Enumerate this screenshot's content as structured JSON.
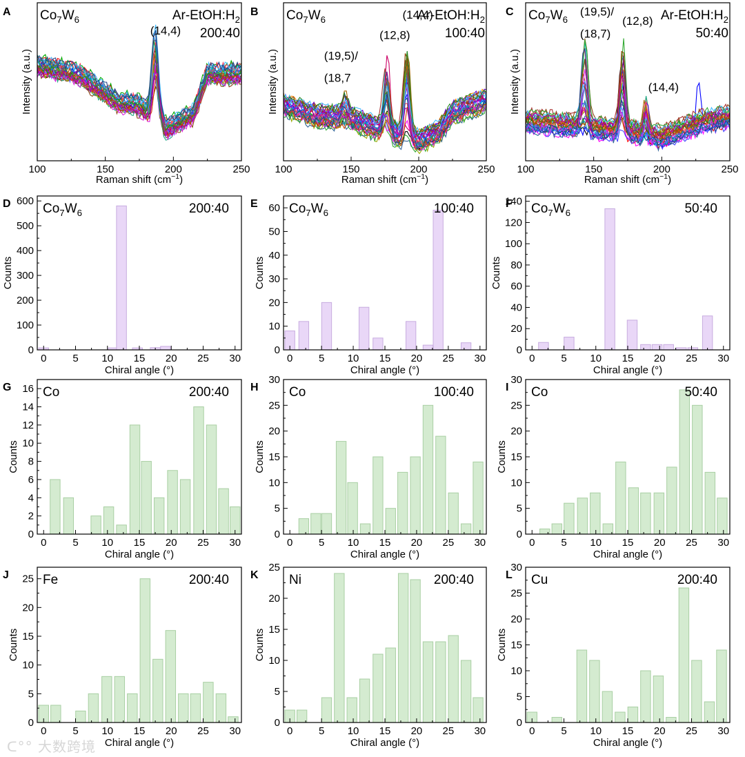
{
  "chart_data": [
    {
      "panel": "A",
      "type": "line",
      "catalyst": "Co7W6",
      "ratio_label": "Ar-EtOH:H2",
      "ratio_value": "200:40",
      "xlabel": "Raman shift (cm",
      "xlabel_sup": "−1",
      "ylabel": "Intensity (a.u.)",
      "xlim": [
        100,
        250
      ],
      "xticks": [
        100,
        150,
        200,
        250
      ],
      "peaks": [
        {
          "label": "(14,4)",
          "x": 187
        }
      ],
      "annotations": [
        {
          "text": "(14,4)",
          "x": 183,
          "y": 0.8
        }
      ]
    },
    {
      "panel": "B",
      "type": "line",
      "catalyst": "Co7W6",
      "ratio_label": "Ar-EtOH:H2",
      "ratio_value": "100:40",
      "xlabel": "Raman shift (cm",
      "xlabel_sup": "−1",
      "ylabel": "Intensity (a.u.)",
      "xlim": [
        100,
        250
      ],
      "xticks": [
        100,
        150,
        200,
        250
      ],
      "peaks": [
        {
          "label": "(19,5)/(18,7",
          "x": 145
        },
        {
          "label": "(12,8)",
          "x": 176
        },
        {
          "label": "(14,4)",
          "x": 191
        }
      ],
      "annotations": [
        {
          "text": "(19,5)/",
          "x": 130,
          "y": 0.64
        },
        {
          "text": "(18,7",
          "x": 130,
          "y": 0.5
        },
        {
          "text": "(12,8)",
          "x": 171,
          "y": 0.77
        },
        {
          "text": "(14,4)",
          "x": 188,
          "y": 0.9
        }
      ]
    },
    {
      "panel": "C",
      "type": "line",
      "catalyst": "Co7W6",
      "ratio_label": "Ar-EtOH:H2",
      "ratio_value": "50:40",
      "xlabel": "Raman shift (cm",
      "xlabel_sup": "−1",
      "ylabel": "Intensity (a.u.)",
      "xlim": [
        100,
        250
      ],
      "xticks": [
        100,
        150,
        200,
        250
      ],
      "peaks": [
        {
          "label": "(19,5)/(18,7)",
          "x": 143
        },
        {
          "label": "(12,8)",
          "x": 171
        },
        {
          "label": "(14,4)",
          "x": 188
        },
        {
          "label": "",
          "x": 227
        }
      ],
      "annotations": [
        {
          "text": "(19,5)/",
          "x": 140,
          "y": 0.92
        },
        {
          "text": "(18,7)",
          "x": 140,
          "y": 0.78
        },
        {
          "text": "(12,8)",
          "x": 171,
          "y": 0.86
        },
        {
          "text": "(14,4)",
          "x": 190,
          "y": 0.44
        }
      ]
    },
    {
      "panel": "D",
      "type": "bar",
      "color": "#e9d7f7",
      "edge": "#c7acdf",
      "catalyst": "Co7W6",
      "ratio_value": "200:40",
      "xlabel": "Chiral angle (°)",
      "ylabel": "Counts",
      "xlim": [
        -1,
        31
      ],
      "ylim": [
        0,
        620
      ],
      "xticks": [
        0,
        5,
        10,
        15,
        20,
        25,
        30
      ],
      "yticks": [
        0,
        100,
        200,
        300,
        400,
        500,
        600
      ],
      "x": [
        0,
        10.9,
        12.2,
        14.7,
        17.5,
        19.1
      ],
      "values": [
        8,
        8,
        580,
        8,
        9,
        14
      ]
    },
    {
      "panel": "E",
      "type": "bar",
      "color": "#e9d7f7",
      "edge": "#c7acdf",
      "catalyst": "Co7W6",
      "ratio_value": "100:40",
      "xlabel": "Chiral angle (°)",
      "ylabel": "Counts",
      "xlim": [
        -1,
        31
      ],
      "ylim": [
        0,
        65
      ],
      "xticks": [
        0,
        5,
        10,
        15,
        20,
        25,
        30
      ],
      "yticks": [
        0,
        10,
        20,
        30,
        40,
        50,
        60
      ],
      "x": [
        0,
        2.2,
        5.8,
        11.7,
        13.9,
        19.1,
        21.8,
        23.4,
        27.8
      ],
      "values": [
        8,
        12,
        20,
        18,
        5,
        12,
        2,
        59,
        3
      ]
    },
    {
      "panel": "F",
      "type": "bar",
      "color": "#e9d7f7",
      "edge": "#c7acdf",
      "catalyst": "Co7W6",
      "ratio_value": "50:40",
      "xlabel": "Chiral angle (°)",
      "ylabel": "Counts",
      "xlim": [
        -1,
        31
      ],
      "ylim": [
        0,
        145
      ],
      "xticks": [
        0,
        5,
        10,
        15,
        20,
        25,
        30
      ],
      "yticks": [
        0,
        20,
        40,
        60,
        80,
        100,
        120,
        140
      ],
      "x": [
        1.8,
        5.8,
        12.2,
        15.7,
        17.8,
        19.6,
        21.4,
        23.4,
        25.2,
        27.5
      ],
      "values": [
        7,
        12,
        133,
        28,
        5,
        5,
        5,
        2,
        2,
        32
      ]
    },
    {
      "panel": "G",
      "type": "bar",
      "color": "#d4ebd0",
      "edge": "#a9cfa3",
      "catalyst": "Co",
      "ratio_value": "200:40",
      "xlabel": "Chiral angle (°)",
      "ylabel": "Counts",
      "xlim": [
        -1,
        31
      ],
      "ylim": [
        0,
        17
      ],
      "xticks": [
        0,
        5,
        10,
        15,
        20,
        25,
        30
      ],
      "yticks": [
        0,
        2,
        4,
        6,
        8,
        10,
        12,
        14,
        16
      ],
      "x": [
        1.8,
        3.9,
        8.2,
        10.2,
        12.2,
        14.3,
        16.1,
        18.1,
        20.2,
        22.2,
        24.3,
        26.3,
        28.2,
        30.0
      ],
      "values": [
        6,
        4,
        2,
        3,
        1,
        12,
        8,
        4,
        7,
        6,
        14,
        12,
        5,
        3
      ]
    },
    {
      "panel": "H",
      "type": "bar",
      "color": "#d4ebd0",
      "edge": "#a9cfa3",
      "catalyst": "Co",
      "ratio_value": "100:40",
      "xlabel": "Chiral angle (°)",
      "ylabel": "Counts",
      "xlim": [
        -1,
        31
      ],
      "ylim": [
        0,
        30
      ],
      "xticks": [
        0,
        5,
        10,
        15,
        20,
        25,
        30
      ],
      "yticks": [
        0,
        5,
        10,
        15,
        20,
        25,
        30
      ],
      "x": [
        2.2,
        4.1,
        5.8,
        8.1,
        9.9,
        11.9,
        13.9,
        15.9,
        17.8,
        19.8,
        21.8,
        23.8,
        25.8,
        27.8,
        29.7
      ],
      "values": [
        3,
        4,
        4,
        18,
        10,
        2,
        15,
        5,
        12,
        15,
        25,
        19,
        8,
        2,
        14
      ]
    },
    {
      "panel": "I",
      "type": "bar",
      "color": "#d4ebd0",
      "edge": "#a9cfa3",
      "catalyst": "Co",
      "ratio_value": "50:40",
      "xlabel": "Chiral angle (°)",
      "ylabel": "Counts",
      "xlim": [
        -1,
        31
      ],
      "ylim": [
        0,
        30
      ],
      "xticks": [
        0,
        5,
        10,
        15,
        20,
        25,
        30
      ],
      "yticks": [
        0,
        5,
        10,
        15,
        20,
        25,
        30
      ],
      "x": [
        2.0,
        3.9,
        5.8,
        7.9,
        9.9,
        11.9,
        13.9,
        15.9,
        17.8,
        19.9,
        21.9,
        23.9,
        25.9,
        27.9,
        29.8
      ],
      "values": [
        1,
        2,
        6,
        7,
        8,
        2,
        14,
        9,
        8,
        8,
        13,
        28,
        25,
        12,
        7
      ]
    },
    {
      "panel": "J",
      "type": "bar",
      "color": "#d4ebd0",
      "edge": "#a9cfa3",
      "catalyst": "Fe",
      "ratio_value": "200:40",
      "xlabel": "Chiral angle (°)",
      "ylabel": "Counts",
      "xlim": [
        -1,
        31
      ],
      "ylim": [
        0,
        27
      ],
      "xticks": [
        0,
        5,
        10,
        15,
        20,
        25,
        30
      ],
      "yticks": [
        0,
        5,
        10,
        15,
        20,
        25
      ],
      "x": [
        0,
        1.9,
        5.8,
        7.8,
        9.9,
        11.9,
        13.9,
        15.9,
        17.9,
        19.9,
        21.9,
        23.8,
        25.8,
        27.8,
        29.7
      ],
      "values": [
        3,
        3,
        2,
        5,
        8,
        8,
        5,
        25,
        11,
        16,
        5,
        5,
        7,
        5,
        1
      ]
    },
    {
      "panel": "K",
      "type": "bar",
      "color": "#d4ebd0",
      "edge": "#a9cfa3",
      "catalyst": "Ni",
      "ratio_value": "200:40",
      "xlabel": "Chiral angle (°)",
      "ylabel": "Counts",
      "xlim": [
        -1,
        31
      ],
      "ylim": [
        0,
        25
      ],
      "xticks": [
        0,
        5,
        10,
        15,
        20,
        25,
        30
      ],
      "yticks": [
        0,
        5,
        10,
        15,
        20,
        25
      ],
      "x": [
        0,
        1.9,
        5.8,
        7.8,
        9.8,
        11.8,
        13.9,
        15.9,
        17.9,
        19.8,
        21.8,
        23.8,
        25.8,
        27.8,
        29.7
      ],
      "values": [
        2,
        2,
        4,
        24,
        4,
        7,
        11,
        12,
        24,
        23,
        13,
        13,
        14,
        10,
        4
      ]
    },
    {
      "panel": "L",
      "type": "bar",
      "color": "#d4ebd0",
      "edge": "#a9cfa3",
      "catalyst": "Cu",
      "ratio_value": "200:40",
      "xlabel": "Chiral angle (°)",
      "ylabel": "Counts",
      "xlim": [
        -1,
        31
      ],
      "ylim": [
        0,
        30
      ],
      "xticks": [
        0,
        5,
        10,
        15,
        20,
        25,
        30
      ],
      "yticks": [
        0,
        5,
        10,
        15,
        20,
        25,
        30
      ],
      "x": [
        0,
        3.9,
        7.8,
        9.8,
        11.8,
        13.8,
        15.8,
        17.8,
        19.8,
        21.8,
        23.8,
        25.8,
        27.8,
        29.7
      ],
      "values": [
        2,
        1,
        14,
        12,
        6,
        2,
        3,
        10,
        9,
        1,
        26,
        12,
        4,
        14
      ]
    }
  ],
  "watermark": "大数跨境"
}
